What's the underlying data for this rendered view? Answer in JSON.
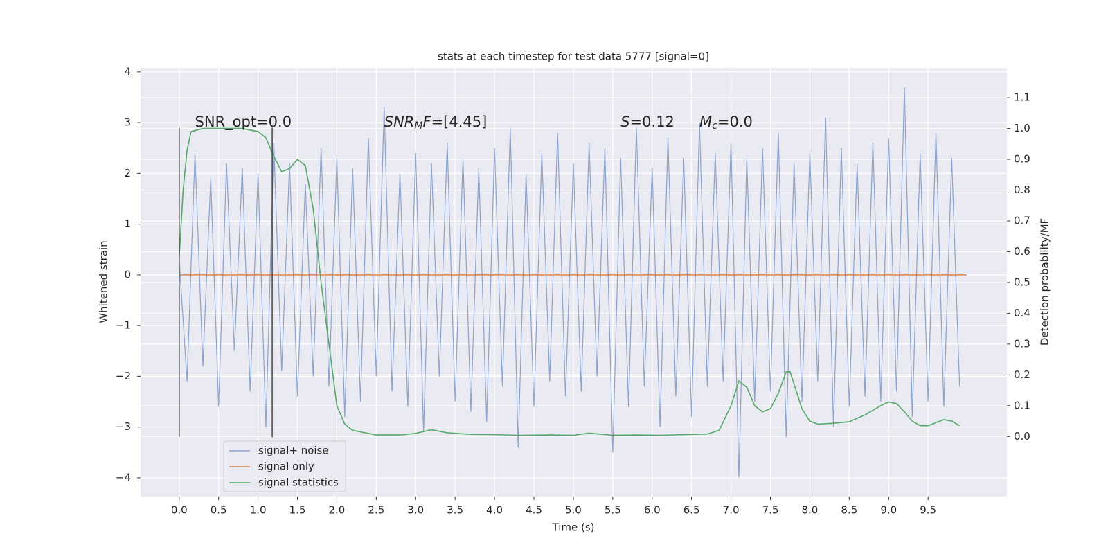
{
  "chart_data": {
    "type": "line",
    "title": "stats at each timestep for test data 5777 [signal=0]",
    "xlabel": "Time (s)",
    "ylabel": "Whitened strain",
    "y2label": "Detection probability/MF",
    "xlim": [
      -0.49,
      10.5
    ],
    "ylim": [
      -4.37,
      4.08
    ],
    "y2lim": [
      -0.195,
      1.197
    ],
    "xticks": [
      {
        "value": 0,
        "label": "0.0"
      },
      {
        "value": 0.5,
        "label": "0.5"
      },
      {
        "value": 1,
        "label": "1.0"
      },
      {
        "value": 1.5,
        "label": "1.5"
      },
      {
        "value": 2,
        "label": "2.0"
      },
      {
        "value": 2.5,
        "label": "2.5"
      },
      {
        "value": 3,
        "label": "3.0"
      },
      {
        "value": 3.5,
        "label": "3.5"
      },
      {
        "value": 4,
        "label": "4.0"
      },
      {
        "value": 4.5,
        "label": "4.5"
      },
      {
        "value": 5,
        "label": "5.0"
      },
      {
        "value": 5.5,
        "label": "5.5"
      },
      {
        "value": 6,
        "label": "6.0"
      },
      {
        "value": 6.5,
        "label": "6.5"
      },
      {
        "value": 7,
        "label": "7.0"
      },
      {
        "value": 7.5,
        "label": "7.5"
      },
      {
        "value": 8,
        "label": "8.0"
      },
      {
        "value": 8.5,
        "label": "8.5"
      },
      {
        "value": 9,
        "label": "9.0"
      },
      {
        "value": 9.5,
        "label": "9.5"
      }
    ],
    "yticks": [
      {
        "value": -4,
        "label": "−4"
      },
      {
        "value": -3,
        "label": "−3"
      },
      {
        "value": -2,
        "label": "−2"
      },
      {
        "value": -1,
        "label": "−1"
      },
      0,
      1,
      2,
      3,
      4
    ],
    "y2ticks": [
      {
        "value": 0,
        "label": "0.0"
      },
      0.1,
      0.2,
      0.3,
      0.4,
      0.5,
      0.6,
      0.7,
      0.8,
      0.9,
      {
        "value": 1,
        "label": "1.0"
      },
      1.1
    ],
    "grid": true,
    "legend": "lower left",
    "vlines": [
      0,
      1.18
    ],
    "vline_range": [
      -3.2,
      2.9
    ],
    "annotations": [
      {
        "x": 0.2,
        "y": 3,
        "parts": [
          {
            "text": "SNR_opt=0.0"
          }
        ]
      },
      {
        "x": 2.6,
        "y": 3,
        "parts": [
          {
            "text": "SNR",
            "italic": true
          },
          {
            "text": "M",
            "italic": true,
            "sub": true
          },
          {
            "text": "F",
            "italic": true
          },
          {
            "text": "=[4.45]"
          }
        ]
      },
      {
        "x": 5.6,
        "y": 3,
        "parts": [
          {
            "text": "S",
            "italic": true
          },
          {
            "text": "=0.12"
          }
        ]
      },
      {
        "x": 6.6,
        "y": 3,
        "parts": [
          {
            "text": "M",
            "italic": true
          },
          {
            "text": "c",
            "italic": true,
            "sub": true
          },
          {
            "text": "=0.0"
          }
        ]
      }
    ],
    "series": [
      {
        "name": "signal+ noise",
        "color": "#4c72b0",
        "x": [
          0,
          0.1,
          0.2,
          0.3,
          0.4,
          0.5,
          0.6,
          0.7,
          0.8,
          0.9,
          1,
          1.1,
          1.2,
          1.3,
          1.4,
          1.5,
          1.6,
          1.7,
          1.8,
          1.9,
          2,
          2.1,
          2.2,
          2.3,
          2.4,
          2.5,
          2.6,
          2.7,
          2.8,
          2.9,
          3,
          3.1,
          3.2,
          3.3,
          3.4,
          3.5,
          3.6,
          3.7,
          3.8,
          3.9,
          4,
          4.1,
          4.2,
          4.3,
          4.4,
          4.5,
          4.6,
          4.7,
          4.8,
          4.9,
          5,
          5.1,
          5.2,
          5.3,
          5.4,
          5.5,
          5.6,
          5.7,
          5.8,
          5.9,
          6,
          6.1,
          6.2,
          6.3,
          6.4,
          6.5,
          6.6,
          6.7,
          6.8,
          6.9,
          7,
          7.1,
          7.2,
          7.3,
          7.4,
          7.5,
          7.6,
          7.7,
          7.8,
          7.9,
          8,
          8.1,
          8.2,
          8.3,
          8.4,
          8.5,
          8.6,
          8.7,
          8.8,
          8.9,
          9,
          9.1,
          9.2,
          9.3,
          9.4,
          9.5,
          9.6,
          9.7,
          9.8,
          9.9
        ],
        "values": [
          0.3,
          -2.1,
          2.4,
          -1.8,
          1.9,
          -2.6,
          2.2,
          -1.5,
          2.1,
          -2.3,
          2.0,
          -3.0,
          2.6,
          -1.9,
          2.2,
          -2.4,
          1.8,
          -2.0,
          2.5,
          -2.2,
          2.3,
          -2.8,
          2.1,
          -2.5,
          2.7,
          -2.0,
          3.3,
          -2.3,
          2.0,
          -2.6,
          2.4,
          -3.1,
          2.2,
          -2.0,
          2.6,
          -2.5,
          2.3,
          -2.7,
          2.1,
          -2.9,
          2.5,
          -2.2,
          2.9,
          -3.4,
          2.0,
          -2.6,
          2.4,
          -2.1,
          2.8,
          -2.4,
          2.2,
          -2.3,
          2.6,
          -2.0,
          2.5,
          -3.5,
          2.3,
          -2.6,
          2.9,
          -2.2,
          2.1,
          -3.0,
          2.7,
          -2.4,
          2.3,
          -2.8,
          3.0,
          -2.2,
          2.4,
          -2.1,
          2.6,
          -4.0,
          2.3,
          -2.5,
          2.5,
          -2.3,
          2.8,
          -3.2,
          2.2,
          -2.5,
          2.4,
          -2.1,
          3.1,
          -3.0,
          2.5,
          -2.6,
          2.2,
          -2.4,
          2.6,
          -2.5,
          2.7,
          -2.3,
          3.7,
          -2.8,
          2.4,
          -2.5,
          2.8,
          -2.6,
          2.3,
          -2.2
        ]
      },
      {
        "name": "signal only",
        "color": "#dd8452",
        "x": [
          0,
          9.99
        ],
        "values": [
          0,
          0
        ]
      },
      {
        "name": "signal statistics",
        "color": "#55a868",
        "axis": "y2",
        "x": [
          0,
          0.05,
          0.1,
          0.15,
          0.3,
          0.5,
          0.8,
          1.0,
          1.1,
          1.2,
          1.3,
          1.4,
          1.5,
          1.6,
          1.65,
          1.7,
          1.8,
          1.9,
          2.0,
          2.1,
          2.2,
          2.5,
          2.8,
          3.0,
          3.2,
          3.4,
          3.7,
          4.0,
          4.3,
          4.7,
          5.0,
          5.2,
          5.5,
          5.8,
          6.1,
          6.4,
          6.7,
          6.85,
          7.0,
          7.1,
          7.2,
          7.3,
          7.4,
          7.5,
          7.6,
          7.7,
          7.75,
          7.8,
          7.9,
          8.0,
          8.1,
          8.3,
          8.5,
          8.7,
          8.9,
          9.0,
          9.1,
          9.2,
          9.3,
          9.4,
          9.5,
          9.6,
          9.7,
          9.8,
          9.9
        ],
        "values": [
          0.58,
          0.8,
          0.93,
          0.99,
          1.0,
          1.0,
          1.0,
          0.99,
          0.97,
          0.91,
          0.86,
          0.87,
          0.9,
          0.88,
          0.81,
          0.74,
          0.5,
          0.3,
          0.1,
          0.04,
          0.02,
          0.005,
          0.005,
          0.01,
          0.022,
          0.012,
          0.007,
          0.006,
          0.004,
          0.005,
          0.004,
          0.011,
          0.004,
          0.005,
          0.004,
          0.006,
          0.008,
          0.02,
          0.1,
          0.18,
          0.16,
          0.1,
          0.08,
          0.09,
          0.14,
          0.21,
          0.21,
          0.17,
          0.09,
          0.05,
          0.04,
          0.043,
          0.048,
          0.07,
          0.1,
          0.112,
          0.107,
          0.08,
          0.05,
          0.035,
          0.035,
          0.045,
          0.055,
          0.05,
          0.035
        ]
      }
    ]
  }
}
